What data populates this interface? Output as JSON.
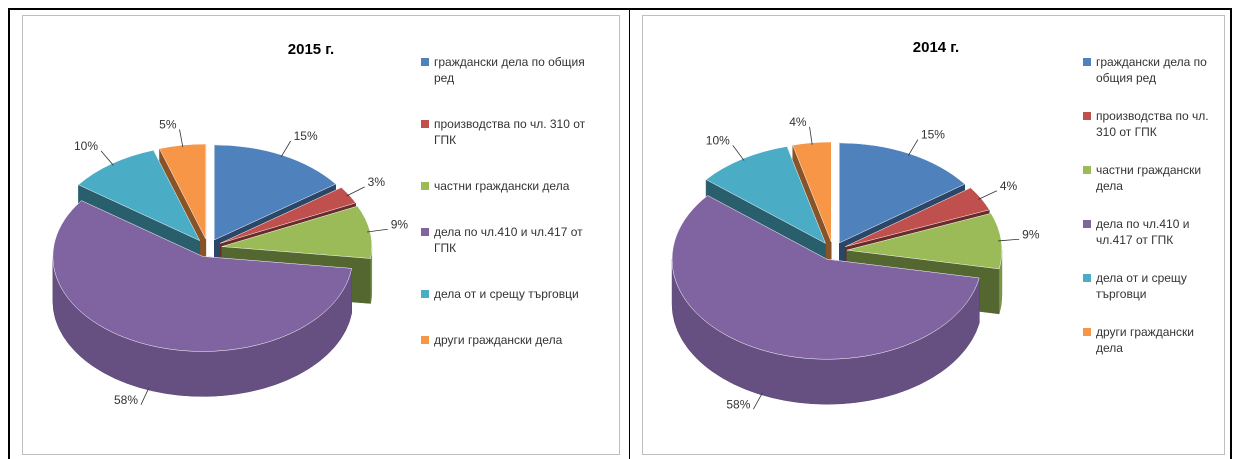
{
  "chart_data": [
    {
      "type": "pie",
      "title": "2015 г.",
      "categories": [
        "граждански дела по общия ред",
        "производства по чл. 310 от ГПК",
        "частни граждански дела",
        "дела по чл.410 и чл.417 от ГПК",
        "дела от и срещу търговци",
        "други граждански дела"
      ],
      "values": [
        15,
        3,
        9,
        58,
        10,
        5
      ],
      "value_labels": [
        "15%",
        "3%",
        "9%",
        "58%",
        "10%",
        "5%"
      ],
      "colors": [
        "#4f81bd",
        "#c0504d",
        "#9bbb59",
        "#8064a2",
        "#4bacc6",
        "#f79646"
      ],
      "legend": "right"
    },
    {
      "type": "pie",
      "title": "2014 г.",
      "categories": [
        "граждански дела по общия ред",
        "производства по чл. 310 от ГПК",
        "частни граждански дела",
        "дела по чл.410 и чл.417 от ГПК",
        "дела от и срещу търговци",
        "други граждански дела"
      ],
      "values": [
        15,
        4,
        9,
        58,
        10,
        4
      ],
      "value_labels": [
        "15%",
        "4%",
        "9%",
        "58%",
        "10%",
        "4%"
      ],
      "colors": [
        "#4f81bd",
        "#c0504d",
        "#9bbb59",
        "#8064a2",
        "#4bacc6",
        "#f79646"
      ],
      "legend": "right"
    }
  ]
}
